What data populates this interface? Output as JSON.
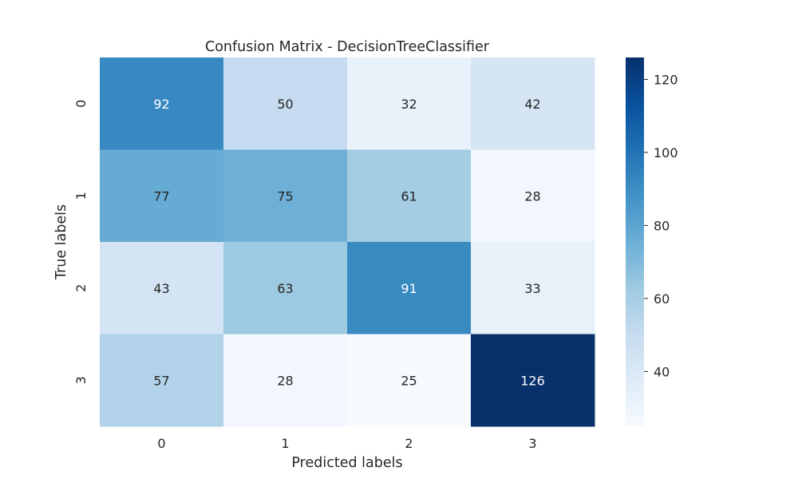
{
  "chart_data": {
    "type": "heatmap",
    "title": "Confusion Matrix - DecisionTreeClassifier",
    "xlabel": "Predicted labels",
    "ylabel": "True labels",
    "x_categories": [
      "0",
      "1",
      "2",
      "3"
    ],
    "y_categories": [
      "0",
      "1",
      "2",
      "3"
    ],
    "values": [
      [
        92,
        50,
        32,
        42
      ],
      [
        77,
        75,
        61,
        28
      ],
      [
        43,
        63,
        91,
        33
      ],
      [
        57,
        28,
        25,
        126
      ]
    ],
    "colormap": "Blues",
    "vmin": 25,
    "vmax": 126,
    "colorbar_ticks": [
      40,
      60,
      80,
      100,
      120
    ],
    "annotations": true
  }
}
